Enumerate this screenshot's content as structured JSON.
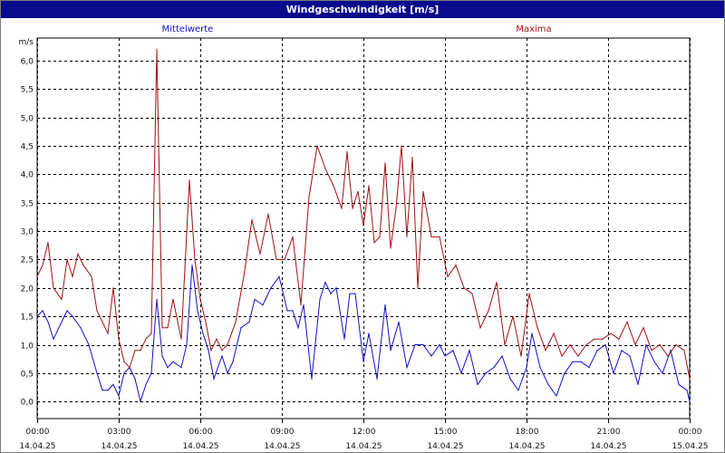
{
  "window": {
    "title": "Windgeschwindigkeit [m/s]"
  },
  "chart_data": {
    "type": "line",
    "title": "Windgeschwindigkeit [m/s]",
    "ylabel": "m/s",
    "xlabel": "",
    "ylim": [
      -0.3,
      6.4
    ],
    "xlim": [
      0,
      24
    ],
    "y_ticks": [
      "6,0",
      "5,5",
      "5,0",
      "4,5",
      "4,0",
      "3,5",
      "3,0",
      "2,5",
      "2,0",
      "1,5",
      "1,0",
      "0,5",
      "0,0"
    ],
    "y_tick_values": [
      6.0,
      5.5,
      5.0,
      4.5,
      4.0,
      3.5,
      3.0,
      2.5,
      2.0,
      1.5,
      1.0,
      0.5,
      0.0
    ],
    "x_ticks": [
      {
        "x": 0,
        "time": "00:00",
        "date": "14.04.25"
      },
      {
        "x": 3,
        "time": "03:00",
        "date": "14.04.25"
      },
      {
        "x": 6,
        "time": "06:00",
        "date": "14.04.25"
      },
      {
        "x": 9,
        "time": "09:00",
        "date": "14.04.25"
      },
      {
        "x": 12,
        "time": "12:00",
        "date": "14.04.25"
      },
      {
        "x": 15,
        "time": "15:00",
        "date": "14.04.25"
      },
      {
        "x": 18,
        "time": "18:00",
        "date": "14.04.25"
      },
      {
        "x": 21,
        "time": "21:00",
        "date": "14.04.25"
      },
      {
        "x": 24,
        "time": "00:00",
        "date": "15.04.25"
      }
    ],
    "grid": true,
    "legend": "top",
    "series": [
      {
        "name": "Mittelwerte",
        "color": "#1010c8",
        "x": [
          0,
          0.2,
          0.4,
          0.6,
          0.9,
          1.1,
          1.3,
          1.6,
          1.9,
          2.2,
          2.4,
          2.6,
          2.8,
          3.0,
          3.2,
          3.4,
          3.6,
          3.8,
          4.0,
          4.2,
          4.4,
          4.6,
          4.8,
          5.0,
          5.3,
          5.5,
          5.7,
          5.9,
          6.1,
          6.3,
          6.5,
          6.8,
          7.0,
          7.2,
          7.5,
          7.8,
          8.0,
          8.3,
          8.6,
          8.9,
          9.2,
          9.4,
          9.6,
          9.8,
          10.1,
          10.4,
          10.6,
          10.8,
          11.0,
          11.3,
          11.5,
          11.7,
          12.0,
          12.2,
          12.5,
          12.8,
          13.0,
          13.3,
          13.6,
          13.9,
          14.2,
          14.5,
          14.8,
          15.0,
          15.3,
          15.6,
          15.9,
          16.2,
          16.5,
          16.8,
          17.1,
          17.4,
          17.7,
          18.0,
          18.2,
          18.5,
          18.8,
          19.1,
          19.4,
          19.7,
          20.0,
          20.3,
          20.6,
          20.9,
          21.2,
          21.5,
          21.8,
          22.1,
          22.4,
          22.7,
          23.0,
          23.3,
          23.6,
          23.9,
          24.0
        ],
        "values": [
          1.5,
          1.6,
          1.4,
          1.1,
          1.4,
          1.6,
          1.5,
          1.3,
          1.0,
          0.5,
          0.2,
          0.2,
          0.3,
          0.1,
          0.5,
          0.6,
          0.4,
          0.0,
          0.3,
          0.5,
          1.8,
          0.8,
          0.6,
          0.7,
          0.6,
          1.0,
          2.4,
          1.6,
          1.2,
          0.9,
          0.4,
          0.8,
          0.5,
          0.7,
          1.3,
          1.4,
          1.8,
          1.7,
          2.0,
          2.2,
          1.6,
          1.6,
          1.3,
          1.7,
          0.4,
          1.8,
          2.1,
          1.9,
          2.0,
          1.1,
          1.9,
          1.9,
          0.7,
          1.2,
          0.4,
          1.7,
          0.9,
          1.4,
          0.6,
          1.0,
          1.0,
          0.8,
          1.0,
          0.8,
          0.9,
          0.5,
          0.9,
          0.3,
          0.5,
          0.6,
          0.8,
          0.4,
          0.2,
          0.6,
          1.2,
          0.6,
          0.3,
          0.1,
          0.5,
          0.7,
          0.7,
          0.6,
          0.9,
          1.0,
          0.5,
          0.9,
          0.8,
          0.3,
          1.0,
          0.7,
          0.5,
          0.9,
          0.3,
          0.2,
          0.0
        ]
      },
      {
        "name": "Maxima",
        "color": "#a01010",
        "x": [
          0,
          0.2,
          0.4,
          0.6,
          0.9,
          1.1,
          1.3,
          1.5,
          1.7,
          2.0,
          2.2,
          2.4,
          2.6,
          2.8,
          3.0,
          3.2,
          3.4,
          3.6,
          3.8,
          4.0,
          4.2,
          4.4,
          4.6,
          4.8,
          5.0,
          5.3,
          5.6,
          5.8,
          6.0,
          6.2,
          6.4,
          6.6,
          6.8,
          7.0,
          7.3,
          7.6,
          7.9,
          8.2,
          8.5,
          8.8,
          9.1,
          9.4,
          9.7,
          10.0,
          10.3,
          10.6,
          10.9,
          11.2,
          11.4,
          11.6,
          11.8,
          12.0,
          12.2,
          12.4,
          12.6,
          12.8,
          13.0,
          13.2,
          13.4,
          13.6,
          13.8,
          14.0,
          14.2,
          14.5,
          14.8,
          15.1,
          15.4,
          15.7,
          16.0,
          16.3,
          16.6,
          16.9,
          17.2,
          17.5,
          17.8,
          18.1,
          18.4,
          18.7,
          19.0,
          19.3,
          19.6,
          19.9,
          20.2,
          20.5,
          20.8,
          21.1,
          21.4,
          21.7,
          22.0,
          22.3,
          22.6,
          22.9,
          23.2,
          23.5,
          23.8,
          24.0
        ],
        "values": [
          2.2,
          2.4,
          2.8,
          2.0,
          1.8,
          2.5,
          2.2,
          2.6,
          2.4,
          2.2,
          1.6,
          1.4,
          1.2,
          2.0,
          1.1,
          0.7,
          0.6,
          0.9,
          0.9,
          1.1,
          1.2,
          6.2,
          1.3,
          1.3,
          1.8,
          1.1,
          3.9,
          2.5,
          1.8,
          1.4,
          0.9,
          1.1,
          0.9,
          1.0,
          1.4,
          2.2,
          3.2,
          2.6,
          3.3,
          2.5,
          2.5,
          2.9,
          1.7,
          3.6,
          4.5,
          4.1,
          3.8,
          3.4,
          4.4,
          3.4,
          3.7,
          3.1,
          3.8,
          2.8,
          2.9,
          4.2,
          2.7,
          3.4,
          4.5,
          2.9,
          4.3,
          2.0,
          3.7,
          2.9,
          2.9,
          2.2,
          2.4,
          2.0,
          1.9,
          1.3,
          1.6,
          2.1,
          1.0,
          1.5,
          0.8,
          1.9,
          1.3,
          0.9,
          1.2,
          0.8,
          1.0,
          0.8,
          1.0,
          1.1,
          1.1,
          1.2,
          1.1,
          1.4,
          1.0,
          1.3,
          0.9,
          1.0,
          0.8,
          1.0,
          0.9,
          0.4
        ]
      }
    ]
  }
}
